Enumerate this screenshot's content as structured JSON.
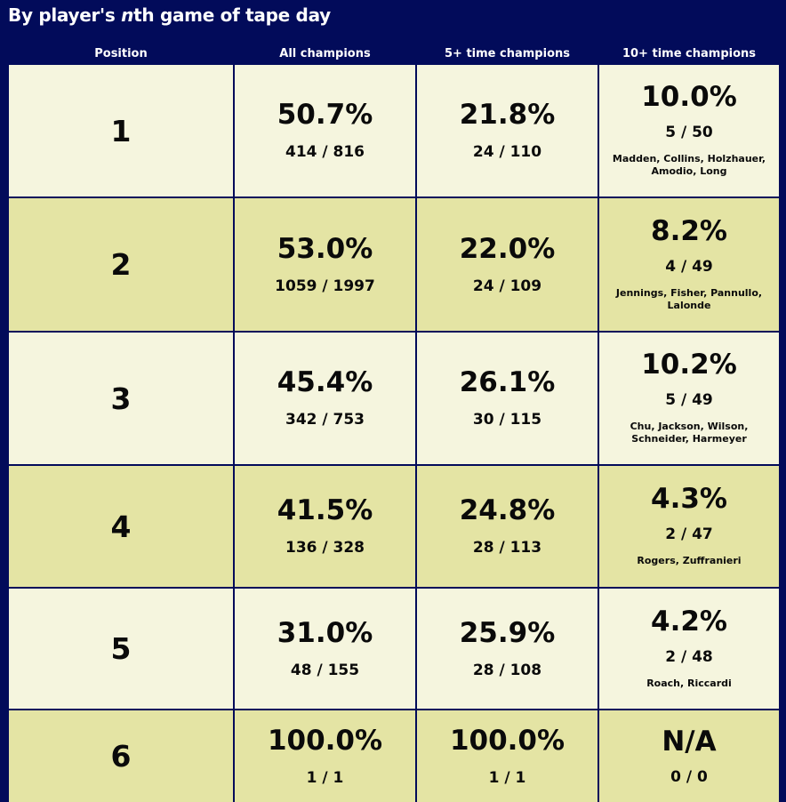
{
  "title": {
    "prefix": "By player's ",
    "italic": "n",
    "suffix": "th game of tape day"
  },
  "headers": [
    "Position",
    "All champions",
    "5+ time champions",
    "10+ time champions"
  ],
  "rows": [
    {
      "position": "1",
      "all": {
        "pct": "50.7%",
        "frac": "414 / 816"
      },
      "five": {
        "pct": "21.8%",
        "frac": "24 / 110"
      },
      "ten": {
        "pct": "10.0%",
        "frac": "5 / 50",
        "names": "Madden, Collins, Holzhauer, Amodio, Long"
      }
    },
    {
      "position": "2",
      "all": {
        "pct": "53.0%",
        "frac": "1059 / 1997"
      },
      "five": {
        "pct": "22.0%",
        "frac": "24 / 109"
      },
      "ten": {
        "pct": "8.2%",
        "frac": "4 / 49",
        "names": "Jennings, Fisher, Pannullo, Lalonde"
      }
    },
    {
      "position": "3",
      "all": {
        "pct": "45.4%",
        "frac": "342 / 753"
      },
      "five": {
        "pct": "26.1%",
        "frac": "30 / 115"
      },
      "ten": {
        "pct": "10.2%",
        "frac": "5 / 49",
        "names": "Chu, Jackson, Wilson, Schneider, Harmeyer"
      }
    },
    {
      "position": "4",
      "all": {
        "pct": "41.5%",
        "frac": "136 / 328"
      },
      "five": {
        "pct": "24.8%",
        "frac": "28 / 113"
      },
      "ten": {
        "pct": "4.3%",
        "frac": "2 / 47",
        "names": "Rogers, Zuffranieri"
      }
    },
    {
      "position": "5",
      "all": {
        "pct": "31.0%",
        "frac": "48 / 155"
      },
      "five": {
        "pct": "25.9%",
        "frac": "28 / 108"
      },
      "ten": {
        "pct": "4.2%",
        "frac": "2 / 48",
        "names": "Roach, Riccardi"
      }
    },
    {
      "position": "6",
      "all": {
        "pct": "100.0%",
        "frac": "1 / 1"
      },
      "five": {
        "pct": "100.0%",
        "frac": "1 / 1"
      },
      "ten": {
        "pct": "N/A",
        "frac": "0 / 0",
        "names": ""
      }
    }
  ],
  "colors": {
    "background": "#020b5a",
    "row_light": "#f5f5de",
    "row_dark": "#e4e4a4"
  }
}
